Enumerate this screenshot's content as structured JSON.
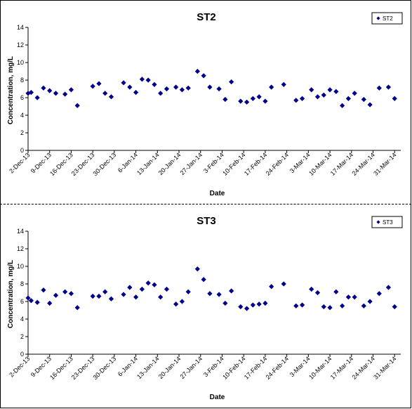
{
  "chart_data": [
    {
      "type": "scatter",
      "title": "ST2",
      "xlabel": "Date",
      "ylabel": "Concentration, mg/L",
      "ylim": [
        0,
        14
      ],
      "yticks": [
        "0",
        "2",
        "4",
        "6",
        "8",
        "10",
        "12",
        "14"
      ],
      "xlim": [
        "2-Dec-13",
        "2-Apr-14"
      ],
      "xticks": [
        "2-Dec-13",
        "9-Dec-13",
        "16-Dec-13",
        "23-Dec-13",
        "30-Dec-13",
        "6-Jan-14",
        "13-Jan-14",
        "20-Jan-14",
        "27-Jan-14",
        "3-Feb-14",
        "10-Feb-14",
        "17-Feb-14",
        "24-Feb-14",
        "3-Mar-14",
        "10-Mar-14",
        "17-Mar-14",
        "24-Mar-14",
        "31-Mar-14"
      ],
      "grid": false,
      "legend": "top-right",
      "marker": "diamond",
      "color": "#00008B",
      "series": [
        {
          "name": "ST2",
          "x": [
            "2-Dec-13",
            "3-Dec-13",
            "5-Dec-13",
            "7-Dec-13",
            "9-Dec-13",
            "11-Dec-13",
            "14-Dec-13",
            "16-Dec-13",
            "18-Dec-13",
            "23-Dec-13",
            "25-Dec-13",
            "27-Dec-13",
            "29-Dec-13",
            "2-Jan-14",
            "4-Jan-14",
            "6-Jan-14",
            "8-Jan-14",
            "10-Jan-14",
            "12-Jan-14",
            "14-Jan-14",
            "16-Jan-14",
            "19-Jan-14",
            "21-Jan-14",
            "23-Jan-14",
            "26-Jan-14",
            "28-Jan-14",
            "30-Jan-14",
            "2-Feb-14",
            "4-Feb-14",
            "6-Feb-14",
            "9-Feb-14",
            "11-Feb-14",
            "13-Feb-14",
            "15-Feb-14",
            "17-Feb-14",
            "19-Feb-14",
            "23-Feb-14",
            "27-Feb-14",
            "1-Mar-14",
            "4-Mar-14",
            "6-Mar-14",
            "8-Mar-14",
            "10-Mar-14",
            "12-Mar-14",
            "14-Mar-14",
            "16-Mar-14",
            "18-Mar-14",
            "21-Mar-14",
            "23-Mar-14",
            "26-Mar-14",
            "29-Mar-14",
            "31-Mar-14"
          ],
          "y": [
            6.5,
            6.6,
            6.0,
            7.1,
            6.8,
            6.5,
            6.4,
            6.9,
            5.1,
            7.3,
            7.6,
            6.5,
            6.1,
            7.7,
            7.2,
            6.6,
            8.1,
            8.0,
            7.5,
            6.5,
            7.0,
            7.2,
            6.9,
            7.1,
            9.0,
            8.5,
            7.2,
            7.0,
            5.8,
            7.8,
            5.6,
            5.5,
            5.9,
            6.1,
            5.6,
            7.2,
            7.5,
            5.7,
            5.9,
            6.9,
            6.1,
            6.3,
            6.9,
            6.7,
            5.1,
            5.9,
            6.5,
            5.8,
            5.2,
            7.1,
            7.2,
            5.9
          ]
        }
      ]
    },
    {
      "type": "scatter",
      "title": "ST3",
      "xlabel": "Date",
      "ylabel": "Concentration, mg/L",
      "ylim": [
        0,
        14
      ],
      "yticks": [
        "0",
        "2",
        "4",
        "6",
        "8",
        "10",
        "12",
        "14"
      ],
      "xlim": [
        "2-Dec-13",
        "2-Apr-14"
      ],
      "xticks": [
        "2-Dec-13",
        "9-Dec-13",
        "16-Dec-13",
        "23-Dec-13",
        "30-Dec-13",
        "6-Jan-14",
        "13-Jan-14",
        "20-Jan-14",
        "27-Jan-14",
        "3-Feb-14",
        "10-Feb-14",
        "17-Feb-14",
        "24-Feb-14",
        "3-Mar-14",
        "10-Mar-14",
        "17-Mar-14",
        "24-Mar-14",
        "31-Mar-14"
      ],
      "grid": false,
      "legend": "top-right",
      "marker": "diamond",
      "color": "#00008B",
      "series": [
        {
          "name": "ST3",
          "x": [
            "2-Dec-13",
            "3-Dec-13",
            "5-Dec-13",
            "7-Dec-13",
            "9-Dec-13",
            "11-Dec-13",
            "14-Dec-13",
            "16-Dec-13",
            "18-Dec-13",
            "23-Dec-13",
            "25-Dec-13",
            "27-Dec-13",
            "29-Dec-13",
            "2-Jan-14",
            "4-Jan-14",
            "6-Jan-14",
            "8-Jan-14",
            "10-Jan-14",
            "12-Jan-14",
            "14-Jan-14",
            "16-Jan-14",
            "19-Jan-14",
            "21-Jan-14",
            "23-Jan-14",
            "26-Jan-14",
            "28-Jan-14",
            "30-Jan-14",
            "2-Feb-14",
            "4-Feb-14",
            "6-Feb-14",
            "9-Feb-14",
            "11-Feb-14",
            "13-Feb-14",
            "15-Feb-14",
            "17-Feb-14",
            "19-Feb-14",
            "23-Feb-14",
            "27-Feb-14",
            "1-Mar-14",
            "4-Mar-14",
            "6-Mar-14",
            "8-Mar-14",
            "10-Mar-14",
            "12-Mar-14",
            "14-Mar-14",
            "16-Mar-14",
            "18-Mar-14",
            "21-Mar-14",
            "23-Mar-14",
            "26-Mar-14",
            "29-Mar-14",
            "31-Mar-14"
          ],
          "y": [
            6.4,
            6.1,
            5.9,
            7.3,
            5.8,
            6.7,
            7.1,
            6.9,
            5.3,
            6.6,
            6.6,
            7.1,
            6.3,
            6.8,
            7.6,
            6.5,
            7.4,
            8.1,
            7.9,
            6.5,
            7.4,
            5.7,
            6.0,
            7.1,
            9.7,
            8.5,
            6.9,
            6.8,
            5.8,
            7.2,
            5.4,
            5.2,
            5.6,
            5.7,
            5.8,
            7.7,
            8.0,
            5.5,
            5.6,
            7.4,
            7.0,
            5.4,
            5.3,
            7.1,
            5.5,
            6.5,
            6.5,
            5.5,
            6.0,
            6.9,
            7.6,
            5.4
          ]
        }
      ]
    }
  ]
}
